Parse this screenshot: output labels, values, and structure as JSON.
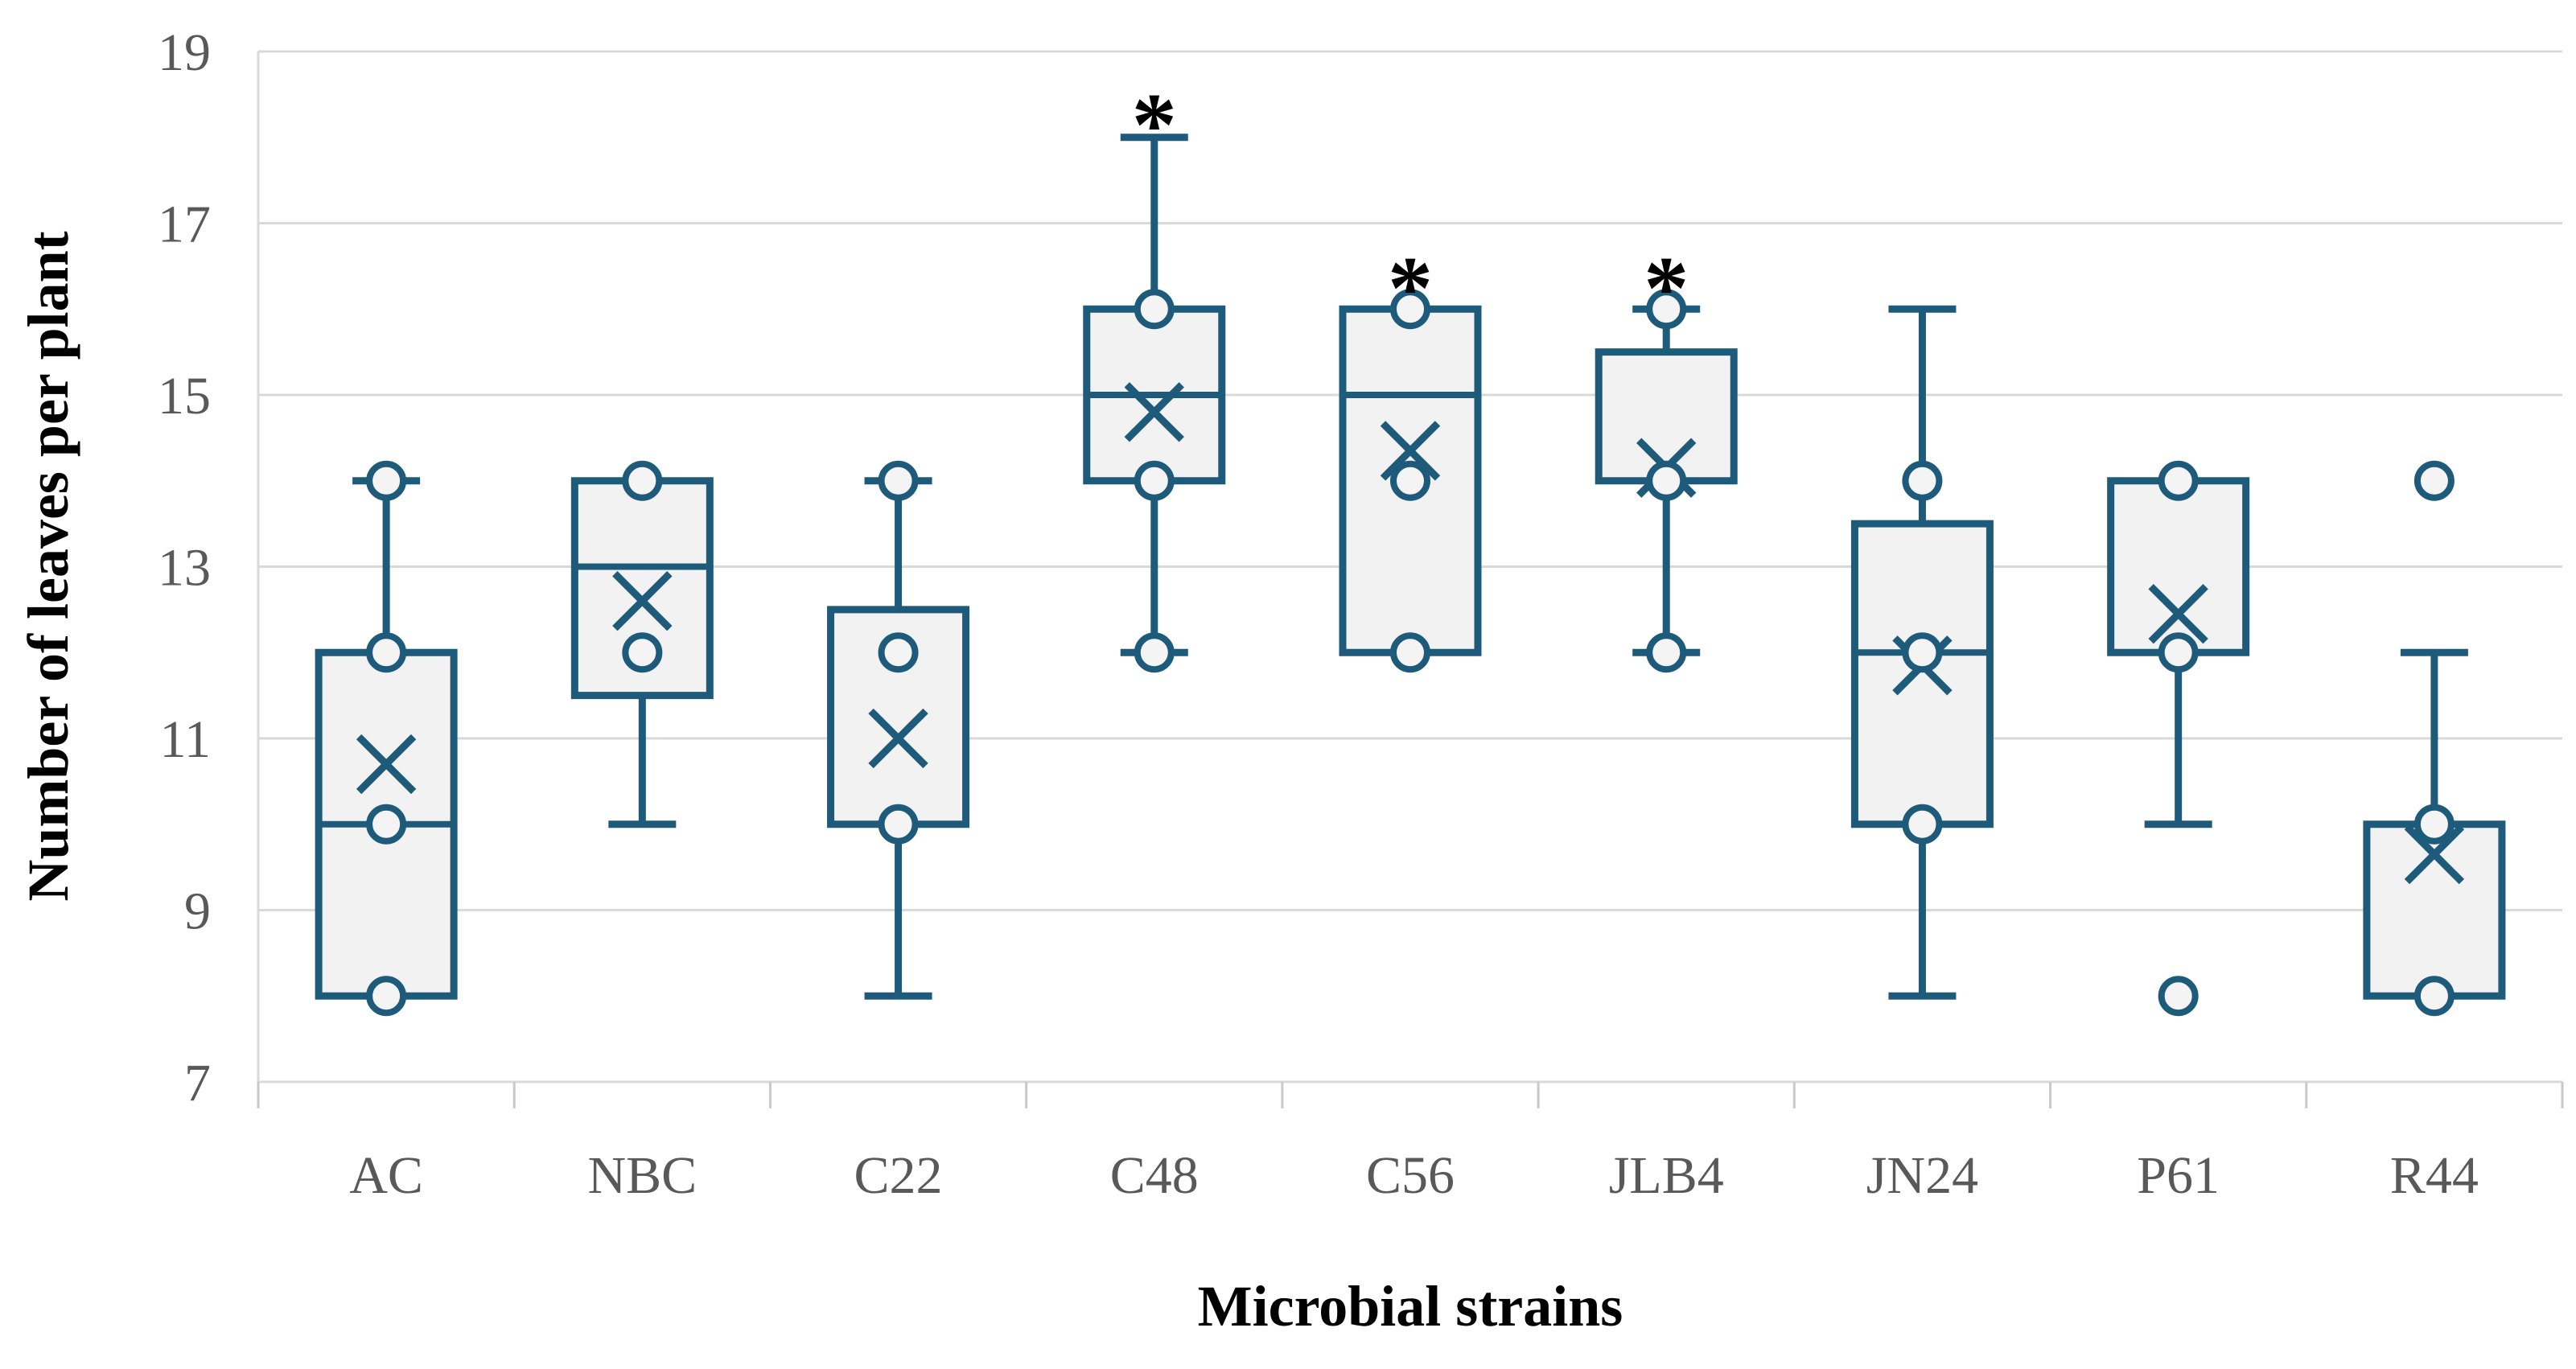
{
  "page": {
    "background": "#ffffff"
  },
  "chart_data": {
    "type": "boxplot",
    "title": "",
    "xlabel": "Microbial strains",
    "ylabel": "Number of leaves per plant",
    "ylim": [
      7,
      19
    ],
    "yticks": [
      7,
      9,
      11,
      13,
      15,
      17,
      19
    ],
    "grid": "horizontal",
    "legend": "none",
    "sig_marker": "*",
    "categories": [
      "AC",
      "NBC",
      "C22",
      "C48",
      "C56",
      "JLB4",
      "JN24",
      "P61",
      "R44"
    ],
    "series": [
      {
        "category": "AC",
        "min": 8,
        "q1": 8,
        "median": 10,
        "q3": 12,
        "max": 14,
        "mean": 10.7,
        "whisker_low": null,
        "whisker_high": 14,
        "points": [
          8,
          10,
          12,
          14
        ],
        "significant": false,
        "sig_y": null
      },
      {
        "category": "NBC",
        "min": 10,
        "q1": 11.5,
        "median": 13,
        "q3": 14,
        "max": 14,
        "mean": 12.6,
        "whisker_low": 10,
        "whisker_high": null,
        "points": [
          12,
          14
        ],
        "significant": false,
        "sig_y": null
      },
      {
        "category": "C22",
        "min": 8,
        "q1": 10,
        "median": 10,
        "q3": 12.5,
        "max": 14,
        "mean": 11.0,
        "whisker_low": 8,
        "whisker_high": 14,
        "points": [
          10,
          12,
          14
        ],
        "significant": false,
        "sig_y": null
      },
      {
        "category": "C48",
        "min": 12,
        "q1": 14,
        "median": 15,
        "q3": 16,
        "max": 18,
        "mean": 14.8,
        "whisker_low": 12,
        "whisker_high": 18,
        "points": [
          12,
          14,
          16
        ],
        "significant": true,
        "sig_y": 18.4
      },
      {
        "category": "C56",
        "min": 12,
        "q1": 12,
        "median": 15,
        "q3": 16,
        "max": 16,
        "mean": 14.35,
        "whisker_low": null,
        "whisker_high": null,
        "points": [
          12,
          14,
          16
        ],
        "significant": true,
        "sig_y": 16.5
      },
      {
        "category": "JLB4",
        "min": 12,
        "q1": 14,
        "median": 14,
        "q3": 15.5,
        "max": 16,
        "mean": 14.15,
        "whisker_low": 12,
        "whisker_high": 16,
        "points": [
          12,
          14,
          16
        ],
        "significant": true,
        "sig_y": 16.5
      },
      {
        "category": "JN24",
        "min": 8,
        "q1": 10,
        "median": 12,
        "q3": 13.5,
        "max": 16,
        "mean": 11.85,
        "whisker_low": 8,
        "whisker_high": 16,
        "points": [
          10,
          12,
          14
        ],
        "significant": false,
        "sig_y": null
      },
      {
        "category": "P61",
        "min": 8,
        "q1": 12,
        "median": 12,
        "q3": 14,
        "max": 14,
        "mean": 12.45,
        "whisker_low": 10,
        "whisker_high": null,
        "points": [
          8,
          12,
          14
        ],
        "significant": false,
        "sig_y": null
      },
      {
        "category": "R44",
        "min": 8,
        "q1": 8,
        "median": 10,
        "q3": 10,
        "max": 14,
        "mean": 9.65,
        "whisker_low": null,
        "whisker_high": 12,
        "points": [
          8,
          10,
          14
        ],
        "significant": false,
        "sig_y": null
      }
    ],
    "colors": {
      "box_stroke": "#1e5b7b",
      "box_fill": "#f2f2f2",
      "gridline": "#d9d9d9",
      "tick_mark": "#c9c9c9",
      "tick_text": "#595959",
      "title_text": "#000000",
      "sig_text": "#000000",
      "point_fill": "#f4f4f4"
    }
  }
}
